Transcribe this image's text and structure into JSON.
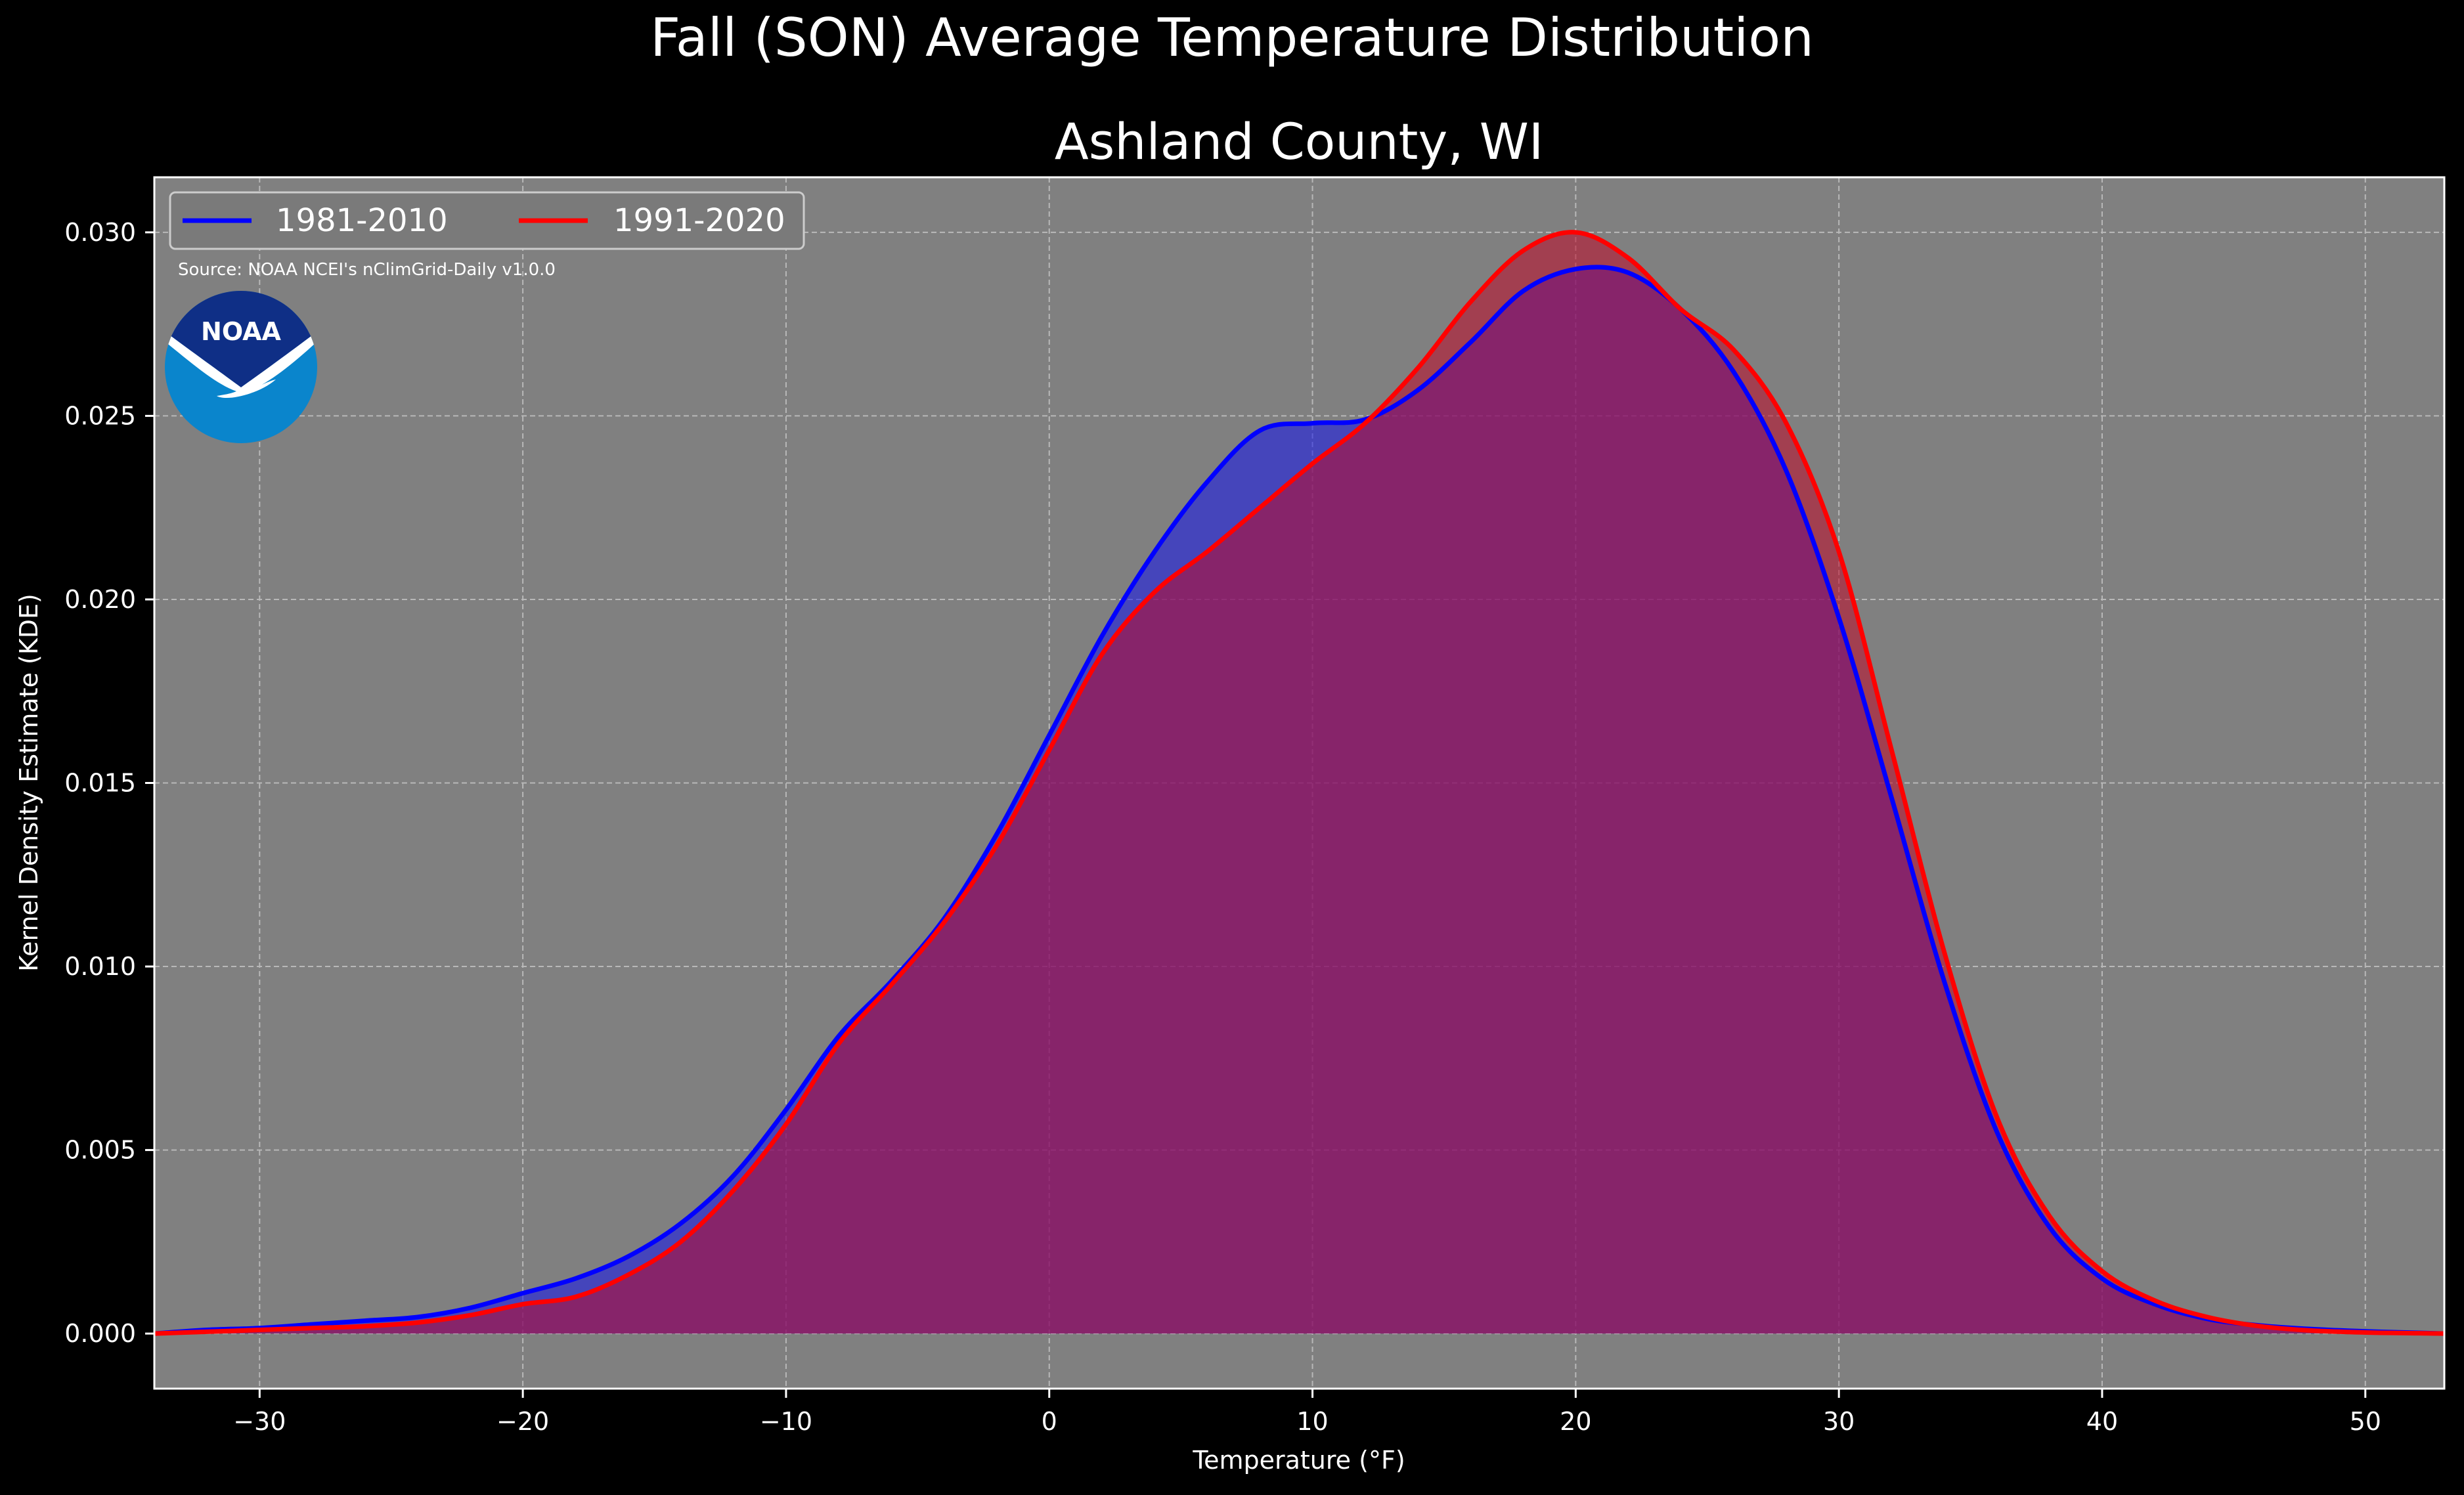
{
  "chart_data": {
    "type": "area",
    "title": "Fall (SON) Average Temperature Distribution",
    "subtitle": "Ashland County, WI",
    "xlabel": "Temperature ($^\\circ$F)",
    "xlabel_display": "Temperature (°F)",
    "ylabel": "Kernel Density Estimate (KDE)",
    "xlim": [
      -34,
      53
    ],
    "ylim": [
      -0.0015,
      0.0315
    ],
    "xticks": [
      -30,
      -20,
      -10,
      0,
      10,
      20,
      30,
      40,
      50
    ],
    "xtick_labels": [
      "−30",
      "−20",
      "−10",
      "0",
      "10",
      "20",
      "30",
      "40",
      "50"
    ],
    "yticks": [
      0.0,
      0.005,
      0.01,
      0.015,
      0.02,
      0.025,
      0.03
    ],
    "ytick_labels": [
      "0.000",
      "0.005",
      "0.010",
      "0.015",
      "0.020",
      "0.025",
      "0.030"
    ],
    "grid": true,
    "legend_placement": "top-left",
    "annotation": "Source: NOAA NCEI's nClimGrid-Daily v1.0.0",
    "logo_text": "NOAA",
    "x": [
      -34,
      -32,
      -30,
      -28,
      -26,
      -24,
      -22,
      -20,
      -18,
      -16,
      -14,
      -12,
      -10,
      -8,
      -6,
      -4,
      -2,
      0,
      2,
      4,
      6,
      8,
      10,
      12,
      14,
      16,
      18,
      20,
      22,
      24,
      26,
      28,
      30,
      32,
      34,
      36,
      38,
      40,
      42,
      44,
      46,
      48,
      50,
      52,
      53
    ],
    "series": [
      {
        "name": "1981-2010",
        "color": "#0000ff",
        "fill": "rgba(20,20,235,0.55)",
        "values": [
          0.0,
          0.0001,
          0.00015,
          0.00025,
          0.00035,
          0.00045,
          0.0007,
          0.0011,
          0.0015,
          0.0021,
          0.003,
          0.0043,
          0.0061,
          0.0081,
          0.0096,
          0.0113,
          0.0136,
          0.0163,
          0.019,
          0.0213,
          0.0232,
          0.0246,
          0.0248,
          0.0249,
          0.0257,
          0.027,
          0.0284,
          0.029,
          0.0289,
          0.0279,
          0.0262,
          0.0235,
          0.0195,
          0.0146,
          0.0096,
          0.0055,
          0.0029,
          0.0015,
          0.0008,
          0.0004,
          0.00022,
          0.00012,
          6e-05,
          2e-05,
          0.0
        ]
      },
      {
        "name": "1991-2020",
        "color": "#ff0000",
        "fill": "rgba(190,10,40,0.55)",
        "values": [
          0.0,
          5e-05,
          0.0001,
          0.00015,
          0.0002,
          0.0003,
          0.0005,
          0.0008,
          0.001,
          0.0016,
          0.0025,
          0.0039,
          0.0057,
          0.0079,
          0.0095,
          0.0112,
          0.0133,
          0.0159,
          0.0185,
          0.0202,
          0.0213,
          0.0225,
          0.0237,
          0.0248,
          0.0263,
          0.0281,
          0.0295,
          0.03,
          0.0293,
          0.0279,
          0.0268,
          0.0248,
          0.0213,
          0.0159,
          0.0104,
          0.0059,
          0.0032,
          0.0017,
          0.0009,
          0.00045,
          0.0002,
          8e-05,
          3e-05,
          1e-05,
          0.0
        ]
      }
    ]
  }
}
